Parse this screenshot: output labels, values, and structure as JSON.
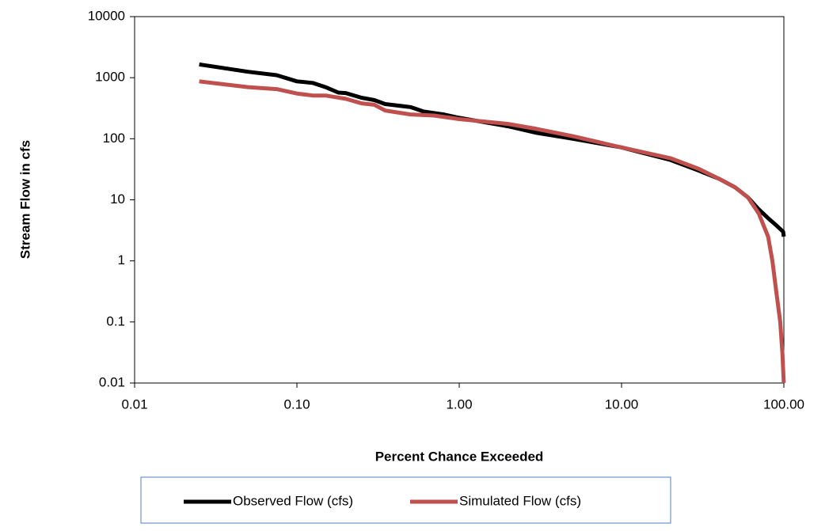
{
  "chart_data": {
    "type": "line",
    "x_label": "Percent Chance Exceeded",
    "y_label": "Stream Flow in cfs",
    "x_log": true,
    "y_log": true,
    "xlim": [
      0.01,
      100
    ],
    "ylim": [
      0.01,
      10000
    ],
    "xticks": [
      0.01,
      {
        "value": 0.1,
        "label": "0.10"
      },
      {
        "value": 1,
        "label": "1.00"
      },
      {
        "value": 10,
        "label": "10.00"
      },
      {
        "value": 100,
        "label": "100.00"
      }
    ],
    "yticks": [
      0.01,
      0.1,
      1,
      10,
      100,
      1000,
      10000
    ],
    "legend": "bottom",
    "series": [
      {
        "name": "Observed Flow (cfs)",
        "color": "#000000",
        "x": [
          0.025,
          0.05,
          0.075,
          0.1,
          0.125,
          0.15,
          0.18,
          0.2,
          0.25,
          0.3,
          0.35,
          0.5,
          0.6,
          0.8,
          1,
          2,
          3,
          5,
          10,
          20,
          30,
          40,
          50,
          60,
          70,
          80,
          90,
          99,
          99.9
        ],
        "values": [
          1650,
          1250,
          1100,
          870,
          820,
          700,
          570,
          560,
          470,
          430,
          370,
          330,
          280,
          250,
          220,
          160,
          125,
          100,
          72,
          45,
          30,
          22,
          16,
          11,
          7,
          5,
          3.8,
          3,
          2.5
        ]
      },
      {
        "name": "Simulated Flow (cfs)",
        "color": "#c0504d",
        "x": [
          0.025,
          0.05,
          0.075,
          0.1,
          0.125,
          0.15,
          0.2,
          0.25,
          0.3,
          0.35,
          0.5,
          0.7,
          1,
          2,
          3,
          5,
          10,
          20,
          30,
          40,
          50,
          60,
          70,
          80,
          85,
          90,
          95,
          98,
          99.9
        ],
        "values": [
          870,
          700,
          650,
          550,
          510,
          510,
          450,
          380,
          360,
          290,
          250,
          240,
          210,
          175,
          145,
          110,
          72,
          48,
          32,
          22,
          16,
          11,
          6,
          2.5,
          1,
          0.3,
          0.1,
          0.03,
          0.01
        ]
      }
    ]
  }
}
